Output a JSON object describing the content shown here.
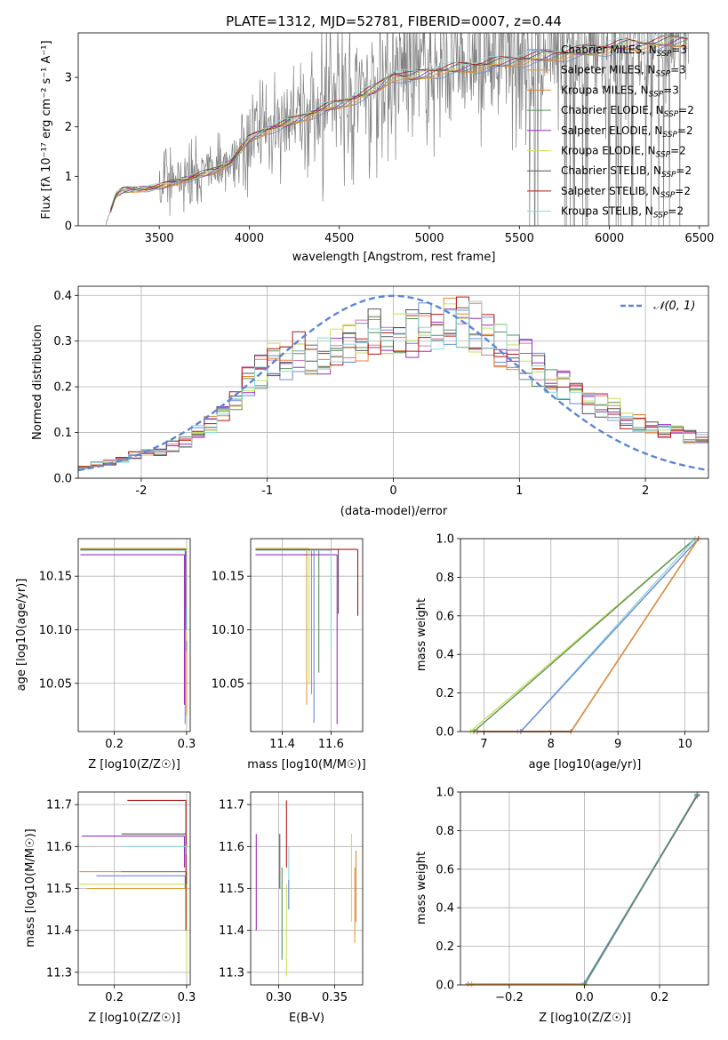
{
  "figure": {
    "title": "PLATE=1312, MJD=52781, FIBERID=0007, z=0.44"
  },
  "colors": {
    "Chabrier MILES": "#6a8ad6",
    "Salpeter MILES": "#e09a3a",
    "Kroupa MILES": "#e8842e",
    "Chabrier ELODIE": "#5a8f5a",
    "Salpeter ELODIE": "#9a2fbe",
    "Kroupa ELODIE": "#c8e05a",
    "Chabrier STELIB": "#555555",
    "Salpeter STELIB": "#b01818",
    "Kroupa STELIB": "#8fd8d8",
    "data": "#808080",
    "normal": "#5b86d6"
  },
  "chart_data": [
    {
      "id": "spectrum",
      "type": "line",
      "xlabel": "wavelength [Angstrom, rest frame]",
      "ylabel": "Flux [fλ 10⁻¹⁷ erg cm⁻² s⁻¹ A⁻¹]",
      "xlim": [
        3050,
        6550
      ],
      "ylim": [
        0,
        3.9
      ],
      "xticks": [
        3500,
        4000,
        4500,
        5000,
        5500,
        6000,
        6500
      ],
      "yticks": [
        0,
        1,
        2,
        3
      ],
      "legend": [
        {
          "name": "Chabrier MILES",
          "nssp": "3"
        },
        {
          "name": "Salpeter MILES",
          "nssp": "3"
        },
        {
          "name": "Kroupa MILES",
          "nssp": "3"
        },
        {
          "name": "Chabrier ELODIE",
          "nssp": "2"
        },
        {
          "name": "Salpeter ELODIE",
          "nssp": "2"
        },
        {
          "name": "Kroupa ELODIE",
          "nssp": "2"
        },
        {
          "name": "Chabrier STELIB",
          "nssp": "2"
        },
        {
          "name": "Salpeter STELIB",
          "nssp": "2"
        },
        {
          "name": "Kroupa STELIB",
          "nssp": "2"
        }
      ],
      "legend_nssp_label": "N",
      "legend_nssp_sub": "SSP",
      "legend_placement": "top-right",
      "model_continuum": {
        "x": [
          3200,
          3260,
          3300,
          3400,
          3500,
          3600,
          3700,
          3800,
          3900,
          4000,
          4100,
          4200,
          4300,
          4400,
          4500,
          4600,
          4700,
          4800,
          4900,
          5000,
          5100,
          5200,
          5300,
          5400,
          5500,
          5600,
          5700,
          5800,
          5900,
          6000,
          6100,
          6200,
          6300,
          6400
        ],
        "y": [
          0.0,
          0.62,
          0.72,
          0.75,
          0.78,
          0.9,
          1.0,
          1.1,
          1.3,
          1.75,
          1.95,
          2.05,
          2.2,
          2.35,
          2.45,
          2.6,
          2.75,
          3.05,
          3.0,
          3.1,
          3.15,
          3.2,
          3.25,
          3.3,
          3.35,
          3.4,
          3.45,
          3.5,
          3.55,
          3.6,
          3.65,
          3.65,
          3.7,
          3.75
        ]
      }
    },
    {
      "id": "residuals",
      "type": "line",
      "xlabel": "(data-model)/error",
      "ylabel": "Normed distribution",
      "xlim": [
        -2.5,
        2.5
      ],
      "ylim": [
        0,
        0.42
      ],
      "xticks": [
        -2,
        -1,
        0,
        1,
        2
      ],
      "yticks": [
        0.0,
        0.1,
        0.2,
        0.3,
        0.4
      ],
      "normal_label": "𝒩(0, 1)",
      "legend_placement": "top-right",
      "hist_bin_centers": [
        -2.45,
        -2.35,
        -2.25,
        -2.15,
        -2.05,
        -1.95,
        -1.85,
        -1.75,
        -1.65,
        -1.55,
        -1.45,
        -1.35,
        -1.25,
        -1.15,
        -1.05,
        -0.95,
        -0.85,
        -0.75,
        -0.65,
        -0.55,
        -0.45,
        -0.35,
        -0.25,
        -0.15,
        -0.05,
        0.05,
        0.15,
        0.25,
        0.35,
        0.45,
        0.55,
        0.65,
        0.75,
        0.85,
        0.95,
        1.05,
        1.15,
        1.25,
        1.35,
        1.45,
        1.55,
        1.65,
        1.75,
        1.85,
        1.95,
        2.05,
        2.15,
        2.25,
        2.35,
        2.45
      ],
      "hist_mean": [
        0.025,
        0.03,
        0.035,
        0.04,
        0.05,
        0.055,
        0.06,
        0.07,
        0.08,
        0.1,
        0.12,
        0.15,
        0.17,
        0.21,
        0.23,
        0.26,
        0.26,
        0.28,
        0.26,
        0.27,
        0.29,
        0.3,
        0.31,
        0.32,
        0.32,
        0.32,
        0.32,
        0.33,
        0.33,
        0.34,
        0.34,
        0.33,
        0.32,
        0.29,
        0.27,
        0.26,
        0.24,
        0.22,
        0.2,
        0.19,
        0.17,
        0.16,
        0.15,
        0.13,
        0.12,
        0.11,
        0.1,
        0.1,
        0.09,
        0.085
      ]
    },
    {
      "id": "age-vs-Z",
      "type": "scatter",
      "xlabel": "Z [log10(Z/Z☉)]",
      "ylabel": "age [log10(age/yr)]",
      "xlim": [
        0.15,
        0.305
      ],
      "ylim": [
        10.005,
        10.185
      ],
      "xticks": [
        0.2,
        0.3
      ],
      "yticks": [
        10.05,
        10.1,
        10.15
      ],
      "points": [
        {
          "model": "Chabrier MILES",
          "x": 0.298,
          "y": 10.175,
          "y_lo": 10.012
        },
        {
          "model": "Salpeter MILES",
          "x": 0.299,
          "y": 10.175,
          "y_lo": 10.11
        },
        {
          "model": "Kroupa MILES",
          "x": 0.3,
          "y": 10.175,
          "y_lo": 10.02
        },
        {
          "model": "Chabrier ELODIE",
          "x": 0.3,
          "y": 10.175,
          "y_lo": 10.08
        },
        {
          "model": "Salpeter ELODIE",
          "x": 0.297,
          "y": 10.17,
          "y_lo": 10.03
        },
        {
          "model": "Kroupa ELODIE",
          "x": 0.3,
          "y": 10.176,
          "y_lo": 10.09
        },
        {
          "model": "Chabrier STELIB",
          "x": 0.299,
          "y": 10.175,
          "y_lo": 10.1
        },
        {
          "model": "Salpeter STELIB",
          "x": 0.299,
          "y": 10.175,
          "y_lo": 10.12
        },
        {
          "model": "Kroupa STELIB",
          "x": 0.3,
          "y": 10.174,
          "y_lo": 10.1
        }
      ]
    },
    {
      "id": "age-vs-mass",
      "type": "scatter",
      "xlabel": "mass [log10(M/M☉)]",
      "ylabel": "",
      "xlim": [
        11.27,
        11.73
      ],
      "ylim": [
        10.005,
        10.185
      ],
      "xticks": [
        11.4,
        11.6
      ],
      "yticks": [
        10.05,
        10.1,
        10.15
      ],
      "points": [
        {
          "model": "Chabrier MILES",
          "x": 11.53,
          "y": 10.175,
          "y_lo": 10.013
        },
        {
          "model": "Salpeter MILES",
          "x": 11.5,
          "y": 10.175,
          "y_lo": 10.03
        },
        {
          "model": "Kroupa MILES",
          "x": 11.52,
          "y": 10.175,
          "y_lo": 10.04
        },
        {
          "model": "Chabrier ELODIE",
          "x": 11.55,
          "y": 10.175,
          "y_lo": 10.06
        },
        {
          "model": "Salpeter ELODIE",
          "x": 11.625,
          "y": 10.17,
          "y_lo": 10.012
        },
        {
          "model": "Kroupa ELODIE",
          "x": 11.51,
          "y": 10.176,
          "y_lo": 10.05
        },
        {
          "model": "Chabrier STELIB",
          "x": 11.63,
          "y": 10.175,
          "y_lo": 10.115
        },
        {
          "model": "Salpeter STELIB",
          "x": 11.71,
          "y": 10.175,
          "y_lo": 10.113
        },
        {
          "model": "Kroupa STELIB",
          "x": 11.6,
          "y": 10.174,
          "y_lo": 10.08
        }
      ]
    },
    {
      "id": "mass-weight-vs-age",
      "type": "line",
      "xlabel": "age [log10(age/yr)]",
      "ylabel": "mass weight",
      "xlim": [
        6.65,
        10.35
      ],
      "ylim": [
        0,
        1
      ],
      "xticks": [
        7,
        8,
        9,
        10
      ],
      "yticks": [
        0.0,
        0.2,
        0.4,
        0.6,
        0.8,
        1.0
      ],
      "series": [
        {
          "model": "Kroupa ELODIE",
          "x": [
            6.8,
            10.15
          ],
          "y": [
            0.0,
            1.0
          ]
        },
        {
          "model": "Chabrier ELODIE",
          "x": [
            6.85,
            10.15
          ],
          "y": [
            0.0,
            1.0
          ]
        },
        {
          "model": "Kroupa STELIB",
          "x": [
            7.5,
            7.55,
            10.15
          ],
          "y": [
            0.0,
            0.0,
            1.0
          ]
        },
        {
          "model": "Chabrier MILES",
          "x": [
            7.55,
            10.2
          ],
          "y": [
            0.0,
            1.0
          ]
        },
        {
          "model": "Salpeter ELODIE",
          "x": [
            6.9,
            8.3,
            10.2
          ],
          "y": [
            0.0,
            0.0,
            1.0
          ]
        },
        {
          "model": "Salpeter STELIB",
          "x": [
            6.9,
            8.3,
            10.2
          ],
          "y": [
            0.0,
            0.0,
            1.0
          ]
        },
        {
          "model": "Salpeter MILES",
          "x": [
            6.9,
            8.3,
            10.2
          ],
          "y": [
            0.0,
            0.0,
            1.0
          ]
        }
      ]
    },
    {
      "id": "mass-vs-Z",
      "type": "scatter",
      "xlabel": "Z [log10(Z/Z☉)]",
      "ylabel": "mass [log10(M/M☉)]",
      "xlim": [
        0.15,
        0.305
      ],
      "ylim": [
        11.27,
        11.73
      ],
      "xticks": [
        0.2,
        0.3
      ],
      "yticks": [
        11.3,
        11.4,
        11.5,
        11.6,
        11.7
      ],
      "points": [
        {
          "model": "Chabrier MILES",
          "x": 0.298,
          "y": 11.53,
          "y_lo": 11.5
        },
        {
          "model": "Salpeter MILES",
          "x": 0.299,
          "y": 11.5,
          "y_lo": 11.45
        },
        {
          "model": "Kroupa MILES",
          "x": 0.3,
          "y": 11.54,
          "y_lo": 11.42
        },
        {
          "model": "Chabrier ELODIE",
          "x": 0.3,
          "y": 11.54,
          "y_lo": 11.5
        },
        {
          "model": "Salpeter ELODIE",
          "x": 0.297,
          "y": 11.625,
          "y_lo": 11.55
        },
        {
          "model": "Kroupa ELODIE",
          "x": 0.3,
          "y": 11.51,
          "y_lo": 11.3
        },
        {
          "model": "Chabrier STELIB",
          "x": 0.299,
          "y": 11.63,
          "y_lo": 11.6
        },
        {
          "model": "Salpeter STELIB",
          "x": 0.299,
          "y": 11.71,
          "y_lo": 11.4
        },
        {
          "model": "Kroupa STELIB",
          "x": 0.3,
          "y": 11.6,
          "y_lo": 11.58
        }
      ]
    },
    {
      "id": "mass-vs-ebv",
      "type": "scatter",
      "xlabel": "E(B-V)",
      "ylabel": "",
      "xlim": [
        0.275,
        0.375
      ],
      "ylim": [
        11.27,
        11.73
      ],
      "xticks": [
        0.3,
        0.35
      ],
      "yticks": [
        11.3,
        11.4,
        11.5,
        11.6,
        11.7
      ],
      "points": [
        {
          "model": "Salpeter ELODIE",
          "x": 0.28,
          "y_lo": 11.4,
          "y_hi": 11.63
        },
        {
          "model": "Chabrier STELIB",
          "x": 0.301,
          "y_lo": 11.5,
          "y_hi": 11.63
        },
        {
          "model": "Chabrier ELODIE",
          "x": 0.303,
          "y_lo": 11.33,
          "y_hi": 11.55
        },
        {
          "model": "Kroupa ELODIE",
          "x": 0.307,
          "y_lo": 11.29,
          "y_hi": 11.51
        },
        {
          "model": "Salpeter STELIB",
          "x": 0.307,
          "y_lo": 11.55,
          "y_hi": 11.71
        },
        {
          "model": "Kroupa STELIB",
          "x": 0.309,
          "y_lo": 11.45,
          "y_hi": 11.6
        },
        {
          "model": "Chabrier MILES",
          "x": 0.309,
          "y_lo": 11.45,
          "y_hi": 11.52
        },
        {
          "model": "Salpeter MILES",
          "x": 0.368,
          "y_lo": 11.37,
          "y_hi": 11.55
        },
        {
          "model": "Kroupa MILES",
          "x": 0.369,
          "y_lo": 11.42,
          "y_hi": 11.59
        },
        {
          "model": "Kroupa ELODIE",
          "x": 0.365,
          "y_lo": 11.42,
          "y_hi": 11.63
        }
      ]
    },
    {
      "id": "mass-weight-vs-Z",
      "type": "line",
      "xlabel": "Z [log10(Z/Z☉)]",
      "ylabel": "mass weight",
      "xlim": [
        -0.33,
        0.33
      ],
      "ylim": [
        0,
        1
      ],
      "xticks": [
        -0.2,
        0.0,
        0.2
      ],
      "yticks": [
        0.0,
        0.2,
        0.4,
        0.6,
        0.8,
        1.0
      ],
      "series": [
        {
          "model": "Kroupa MILES",
          "x": [
            -0.31,
            0.0
          ],
          "y": [
            0.005,
            0.005
          ]
        },
        {
          "model": "Salpeter MILES",
          "x": [
            -0.3,
            0.0
          ],
          "y": [
            0.003,
            0.003
          ]
        },
        {
          "model": "Chabrier MILES",
          "x": [
            0.0,
            0.3
          ],
          "y": [
            0.01,
            0.985
          ]
        },
        {
          "model": "Salpeter ELODIE",
          "x": [
            0.0,
            0.3
          ],
          "y": [
            0.0,
            0.98
          ]
        },
        {
          "model": "Kroupa STELIB",
          "x": [
            0.0,
            0.3
          ],
          "y": [
            0.0,
            0.99
          ]
        },
        {
          "model": "Chabrier ELODIE",
          "x": [
            0.0,
            0.3
          ],
          "y": [
            0.0,
            0.985
          ]
        }
      ]
    }
  ]
}
